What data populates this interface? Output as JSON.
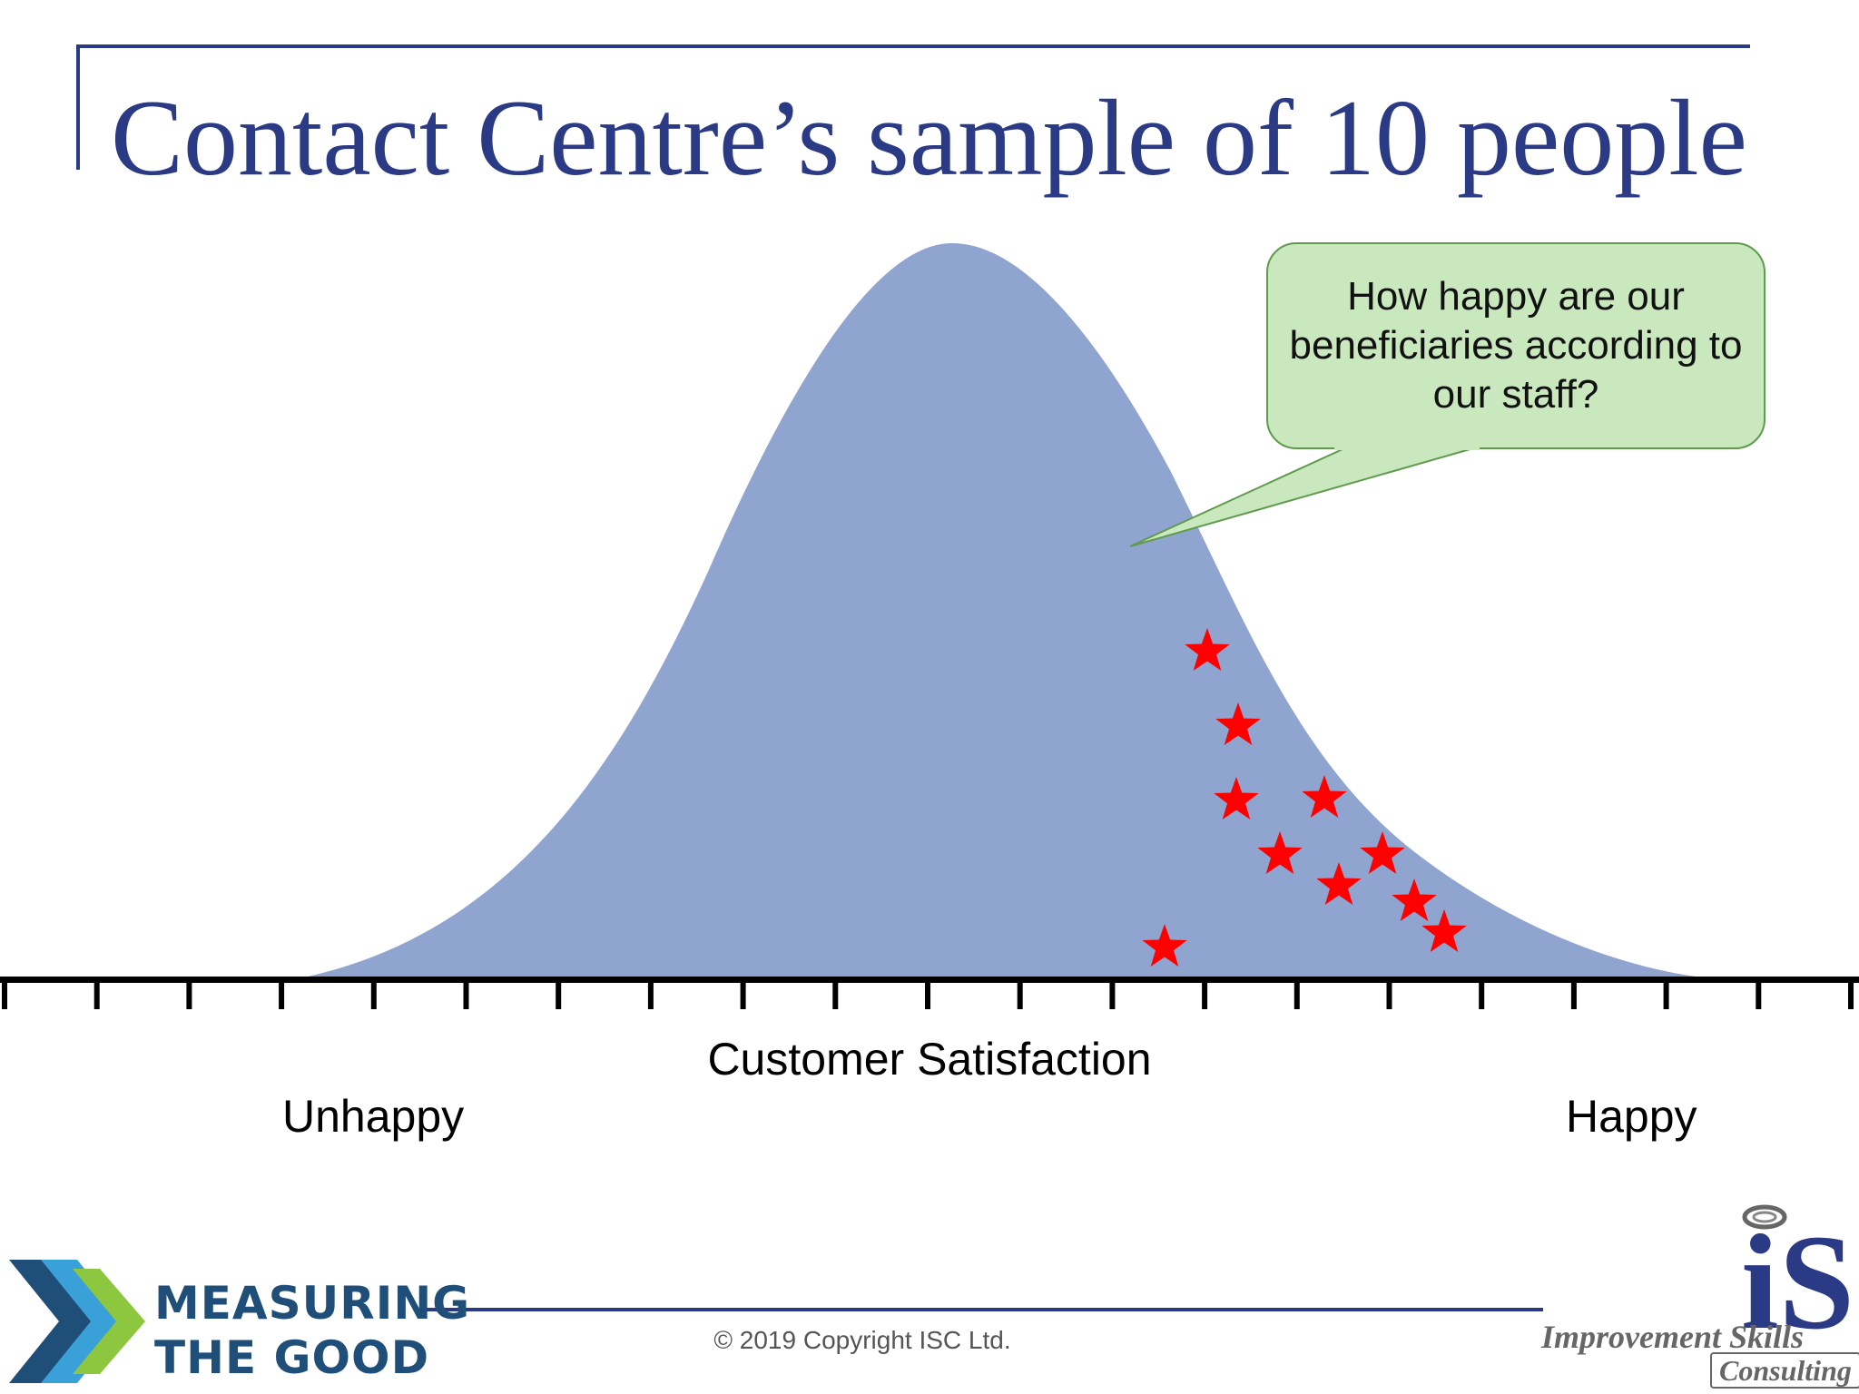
{
  "title": "Contact Centre’s sample of 10 people",
  "callout": {
    "text": "How happy are our beneficiaries according to our staff?",
    "fill": "#c9e8bd",
    "border": "#5f9a4e"
  },
  "diagram": {
    "curve_color": "#8fa4cf",
    "marker_color": "#ff0000",
    "axis_caption": "Customer Satisfaction",
    "left_label": "Unhappy",
    "right_label": "Happy",
    "tick_count": 20,
    "sample_size": 10
  },
  "footer": {
    "copyright": "© 2019 Copyright ISC Ltd.",
    "rule_color": "#2b3a84"
  },
  "logos": {
    "left_line1": "MEASURING",
    "left_line2": "THE GOOD",
    "right_mark": "iS",
    "right_line1": "Improvement Skills",
    "right_line2": "Consulting"
  }
}
